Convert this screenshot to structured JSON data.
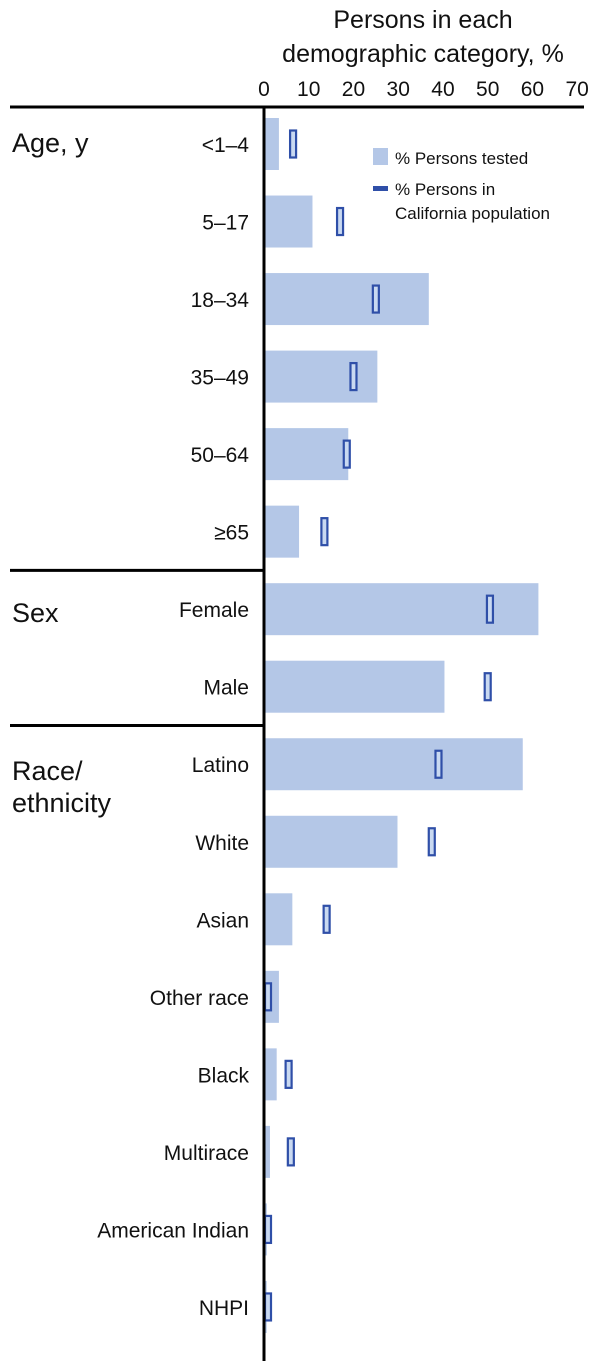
{
  "chart_data": {
    "type": "bar",
    "orientation": "horizontal",
    "title": "",
    "xlabel": "Persons in each demographic category, %",
    "ylabel": "",
    "xlim": [
      0,
      70
    ],
    "xticks": [
      0,
      10,
      20,
      30,
      40,
      50,
      60,
      70
    ],
    "grid": false,
    "legend_position": "top-right",
    "groups": [
      {
        "label": "Age, y",
        "categories": [
          "<1–4",
          "5–17",
          "18–34",
          "35–49",
          "50–64",
          "≥65"
        ]
      },
      {
        "label": "Sex",
        "categories": [
          "Female",
          "Male"
        ]
      },
      {
        "label": "Race/ ethnicity",
        "categories": [
          "Latino",
          "White",
          "Asian",
          "Other race",
          "Black",
          "Multirace",
          "American Indian",
          "NHPI"
        ]
      }
    ],
    "categories": [
      "<1–4",
      "5–17",
      "18–34",
      "35–49",
      "50–64",
      "≥65",
      "Female",
      "Male",
      "Latino",
      "White",
      "Asian",
      "Other race",
      "Black",
      "Multirace",
      "American Indian",
      "NHPI"
    ],
    "series": [
      {
        "name": "% Persons tested",
        "mark": "bar",
        "values": [
          3,
          10.5,
          36.5,
          25,
          18.5,
          7.5,
          61,
          40,
          57.5,
          29.5,
          6,
          3,
          2.5,
          1,
          0.3,
          0.2
        ]
      },
      {
        "name": "% Persons in California population",
        "mark": "tick",
        "values": [
          6.5,
          17,
          25,
          20,
          18.5,
          13.5,
          50.5,
          50,
          39,
          37.5,
          14,
          0.5,
          5.5,
          6,
          0.5,
          0.5
        ]
      }
    ],
    "colors": {
      "bar": "#b4c7e7",
      "marker_fill": "#c9d9f1",
      "marker_stroke": "#2f4fa8",
      "axis": "#000000"
    }
  }
}
